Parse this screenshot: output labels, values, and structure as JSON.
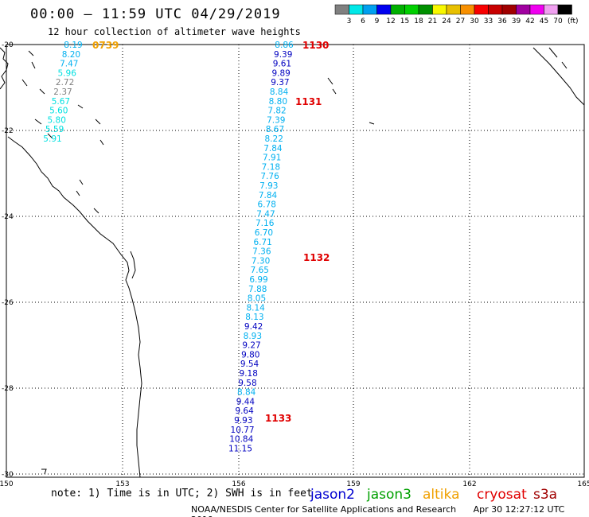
{
  "header": {
    "title": "00:00 – 11:59 UTC 04/29/2019",
    "subtitle": "12 hour collection of altimeter wave heights"
  },
  "colorbar": {
    "unit": "(ft)",
    "ticks": [
      "3",
      "6",
      "9",
      "12",
      "15",
      "18",
      "21",
      "24",
      "27",
      "30",
      "33",
      "36",
      "39",
      "42",
      "45",
      "70"
    ],
    "colors": [
      "#808080",
      "#00e8e8",
      "#00a0f0",
      "#0000f0",
      "#00b000",
      "#00d000",
      "#009000",
      "#f8f800",
      "#e8c000",
      "#f89000",
      "#f80000",
      "#c80000",
      "#a00000",
      "#a000a0",
      "#f000f0",
      "#f0a0f0",
      "#000000"
    ]
  },
  "axes": {
    "lat_labels": [
      "-20",
      "-22",
      "-24",
      "-26",
      "-28",
      "-30"
    ],
    "lon_labels": [
      "150",
      "153",
      "156",
      "159",
      "162",
      "165"
    ]
  },
  "tracks": [
    {
      "satellite": "jason2",
      "points": [
        {
          "v": "8.86",
          "c": "#00b0f0"
        },
        {
          "v": "9.39",
          "c": "#0000c0"
        },
        {
          "v": "9.61",
          "c": "#0000c0"
        },
        {
          "v": "9.89",
          "c": "#0000c0"
        },
        {
          "v": "9.37",
          "c": "#0000c0"
        },
        {
          "v": "8.84",
          "c": "#00b0f0"
        },
        {
          "v": "8.80",
          "c": "#00b0f0"
        },
        {
          "v": "7.82",
          "c": "#00b0f0"
        },
        {
          "v": "7.39",
          "c": "#00b0f0"
        },
        {
          "v": "8.67",
          "c": "#00b0f0"
        },
        {
          "v": "8.22",
          "c": "#00b0f0"
        },
        {
          "v": "7.84",
          "c": "#00b0f0"
        },
        {
          "v": "7.91",
          "c": "#00b0f0"
        },
        {
          "v": "7.18",
          "c": "#00b0f0"
        },
        {
          "v": "7.76",
          "c": "#00b0f0"
        },
        {
          "v": "7.93",
          "c": "#00b0f0"
        },
        {
          "v": "7.84",
          "c": "#00b0f0"
        },
        {
          "v": "6.78",
          "c": "#00b0f0"
        },
        {
          "v": "7.47",
          "c": "#00b0f0"
        },
        {
          "v": "7.16",
          "c": "#00b0f0"
        },
        {
          "v": "6.70",
          "c": "#00b0f0"
        },
        {
          "v": "6.71",
          "c": "#00b0f0"
        },
        {
          "v": "7.36",
          "c": "#00b0f0"
        },
        {
          "v": "7.30",
          "c": "#00b0f0"
        },
        {
          "v": "7.65",
          "c": "#00b0f0"
        },
        {
          "v": "6.99",
          "c": "#00b0f0"
        },
        {
          "v": "7.88",
          "c": "#00b0f0"
        },
        {
          "v": "8.05",
          "c": "#00b0f0"
        },
        {
          "v": "8.14",
          "c": "#00b0f0"
        },
        {
          "v": "8.13",
          "c": "#00b0f0"
        },
        {
          "v": "9.42",
          "c": "#0000c0"
        },
        {
          "v": "8.93",
          "c": "#00b0f0"
        },
        {
          "v": "9.27",
          "c": "#0000c0"
        },
        {
          "v": "9.80",
          "c": "#0000c0"
        },
        {
          "v": "9.54",
          "c": "#0000c0"
        },
        {
          "v": "9.18",
          "c": "#0000c0"
        },
        {
          "v": "9.58",
          "c": "#0000c0"
        },
        {
          "v": "8.84",
          "c": "#00b0f0"
        },
        {
          "v": "9.44",
          "c": "#0000c0"
        },
        {
          "v": "9.64",
          "c": "#0000c0"
        },
        {
          "v": "9.93",
          "c": "#0000c0"
        },
        {
          "v": "10.77",
          "c": "#0000c0"
        },
        {
          "v": "10.84",
          "c": "#0000c0"
        },
        {
          "v": "11.15",
          "c": "#0000c0"
        }
      ]
    },
    {
      "satellite": "jason3",
      "points": [
        {
          "v": "8.19",
          "c": "#00b0f0"
        },
        {
          "v": "8.20",
          "c": "#00b0f0"
        },
        {
          "v": "7.47",
          "c": "#00b0f0"
        },
        {
          "v": "5.96",
          "c": "#00e0e0"
        },
        {
          "v": "2.72",
          "c": "#808080"
        },
        {
          "v": "2.37",
          "c": "#808080"
        },
        {
          "v": "5.67",
          "c": "#00e0e0"
        },
        {
          "v": "5.60",
          "c": "#00e0e0"
        },
        {
          "v": "5.80",
          "c": "#00e0e0"
        },
        {
          "v": "5.59",
          "c": "#00e0e0"
        },
        {
          "v": "5.91",
          "c": "#00e0e0"
        }
      ]
    }
  ],
  "pass_times": [
    {
      "t": "0739",
      "c": "#f0a000"
    },
    {
      "t": "1130",
      "c": "#e00000"
    },
    {
      "t": "1131",
      "c": "#e00000"
    },
    {
      "t": "1132",
      "c": "#e00000"
    },
    {
      "t": "1133",
      "c": "#e00000"
    }
  ],
  "footer": {
    "note": "note: 1) Time is in UTC; 2) SWH is in feet",
    "satellites": [
      {
        "name": "jason2",
        "color": "#0000d0"
      },
      {
        "name": "jason3",
        "color": "#00a000"
      },
      {
        "name": "altika",
        "color": "#f0a000"
      },
      {
        "name": "cryosat",
        "color": "#e00000"
      },
      {
        "name": "s3a",
        "color": "#a00000"
      }
    ],
    "credit": "NOAA/NESDIS Center for Satellite Applications and Research",
    "timestamp": "Apr 30 12:27:12 UTC 2019"
  }
}
